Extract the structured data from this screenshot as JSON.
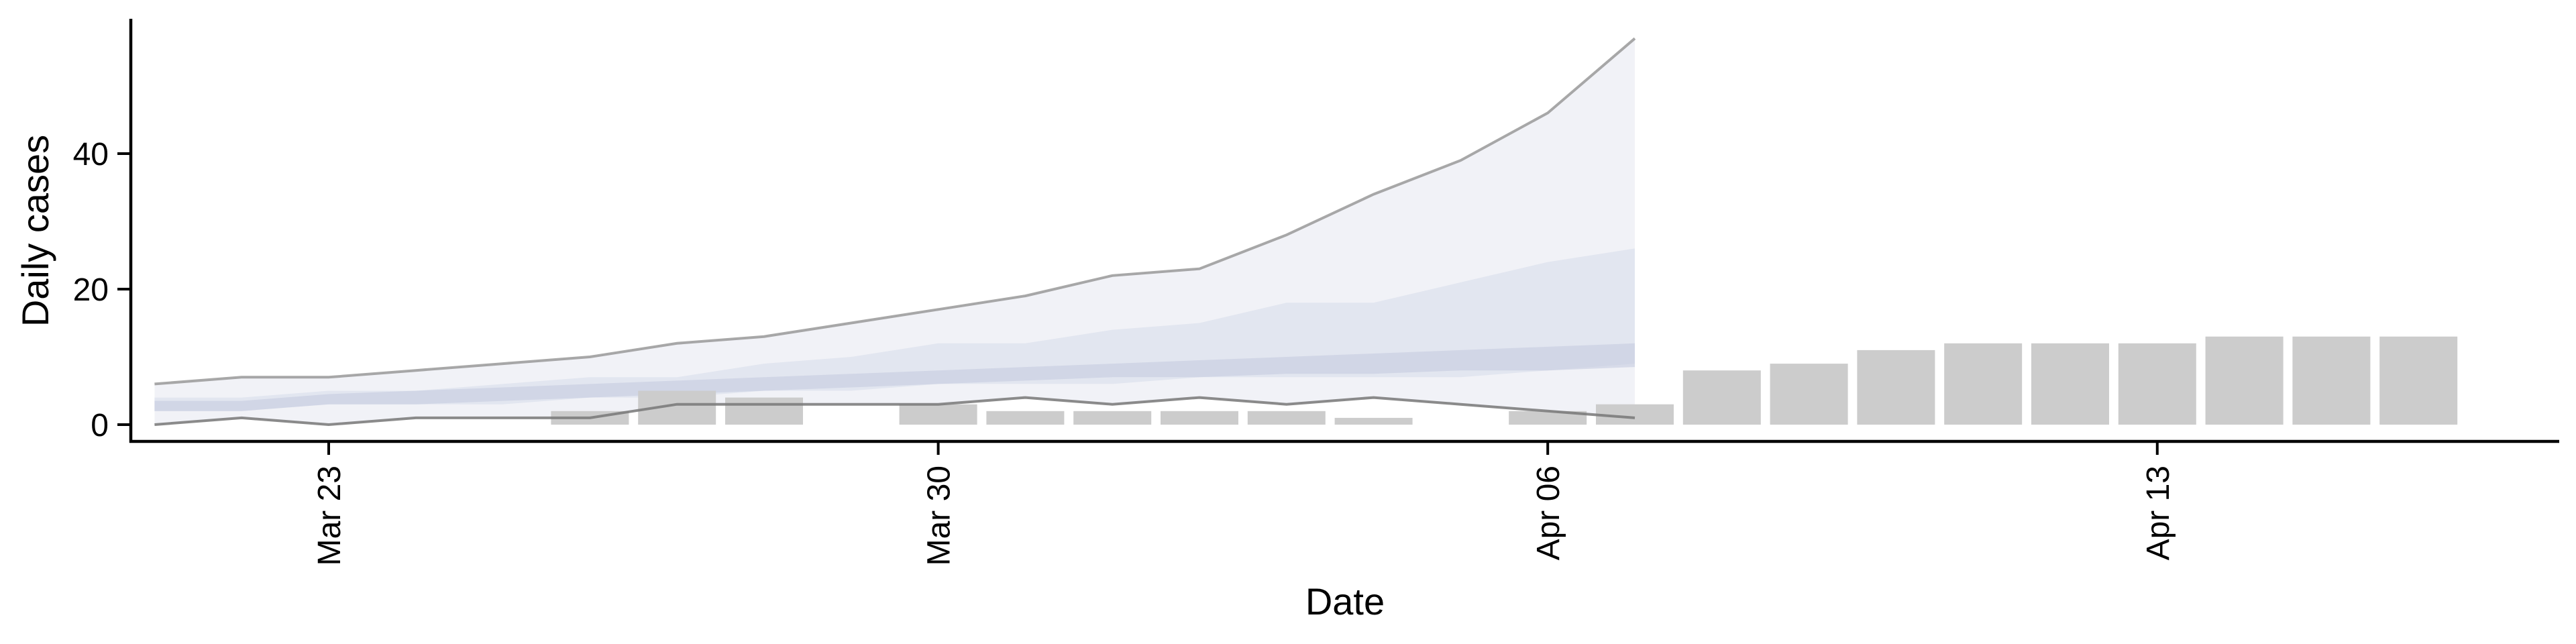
{
  "chart_data": {
    "type": "bar",
    "title": "",
    "xlabel": "Date",
    "ylabel": "Daily cases",
    "x_tick_labels": [
      {
        "date": "2020-03-23",
        "label": "Mar 23"
      },
      {
        "date": "2020-03-30",
        "label": "Mar 30"
      },
      {
        "date": "2020-04-06",
        "label": "Apr 06"
      },
      {
        "date": "2020-04-13",
        "label": "Apr 13"
      }
    ],
    "y_ticks": [
      0,
      20,
      40
    ],
    "xlim": [
      "2020-03-19",
      "2020-04-19"
    ],
    "ylim": [
      -3,
      60
    ],
    "grid": false,
    "colors": {
      "bars": "#cccccc",
      "band_outer": "#eef0f6",
      "band_middle": "#dfe2ee",
      "band_inner": "#c6cbe0",
      "line_upper": "#999999",
      "line_lower": "#777777"
    },
    "bars": [
      {
        "date": "2020-03-25",
        "value": 0
      },
      {
        "date": "2020-03-26",
        "value": 2
      },
      {
        "date": "2020-03-27",
        "value": 5
      },
      {
        "date": "2020-03-28",
        "value": 4
      },
      {
        "date": "2020-03-30",
        "value": 3
      },
      {
        "date": "2020-03-31",
        "value": 2
      },
      {
        "date": "2020-04-01",
        "value": 2
      },
      {
        "date": "2020-04-02",
        "value": 2
      },
      {
        "date": "2020-04-03",
        "value": 2
      },
      {
        "date": "2020-04-04",
        "value": 1
      },
      {
        "date": "2020-04-06",
        "value": 2
      },
      {
        "date": "2020-04-07",
        "value": 3
      },
      {
        "date": "2020-04-08",
        "value": 8
      },
      {
        "date": "2020-04-09",
        "value": 9
      },
      {
        "date": "2020-04-10",
        "value": 11
      },
      {
        "date": "2020-04-11",
        "value": 12
      },
      {
        "date": "2020-04-12",
        "value": 12
      },
      {
        "date": "2020-04-13",
        "value": 12
      },
      {
        "date": "2020-04-14",
        "value": 13
      },
      {
        "date": "2020-04-15",
        "value": 13
      },
      {
        "date": "2020-04-16",
        "value": 13
      }
    ],
    "bands": {
      "dates": [
        "2020-03-21",
        "2020-03-22",
        "2020-03-23",
        "2020-03-24",
        "2020-03-25",
        "2020-03-26",
        "2020-03-27",
        "2020-03-28",
        "2020-03-29",
        "2020-03-30",
        "2020-03-31",
        "2020-04-01",
        "2020-04-02",
        "2020-04-03",
        "2020-04-04",
        "2020-04-05",
        "2020-04-06",
        "2020-04-07"
      ],
      "outer_upper": [
        6,
        7,
        7,
        8,
        9,
        10,
        12,
        13,
        15,
        17,
        19,
        22,
        23,
        28,
        34,
        39,
        46,
        57
      ],
      "outer_lower": [
        0,
        1,
        0,
        1,
        1,
        1,
        3,
        3,
        3,
        3,
        4,
        3,
        4,
        3,
        4,
        3,
        2,
        1
      ],
      "middle_upper": [
        4,
        4,
        5,
        5,
        6,
        7,
        7,
        9,
        10,
        12,
        12,
        14,
        15,
        18,
        18,
        21,
        24,
        26
      ],
      "middle_lower": [
        2,
        2,
        3,
        3,
        3,
        4,
        4,
        5,
        5,
        6,
        6,
        6,
        7,
        7,
        7,
        7,
        8,
        9
      ],
      "inner_upper": [
        3.5,
        3.5,
        4.5,
        5,
        5.5,
        6,
        6.5,
        7,
        7.5,
        8,
        8.5,
        9,
        9.5,
        10,
        10.5,
        11,
        11.5,
        12
      ],
      "inner_lower": [
        2,
        2,
        3,
        3,
        3.5,
        4,
        4.5,
        5,
        5.5,
        6,
        6.5,
        7,
        7,
        7.5,
        7.5,
        8,
        8,
        8.5
      ]
    }
  }
}
